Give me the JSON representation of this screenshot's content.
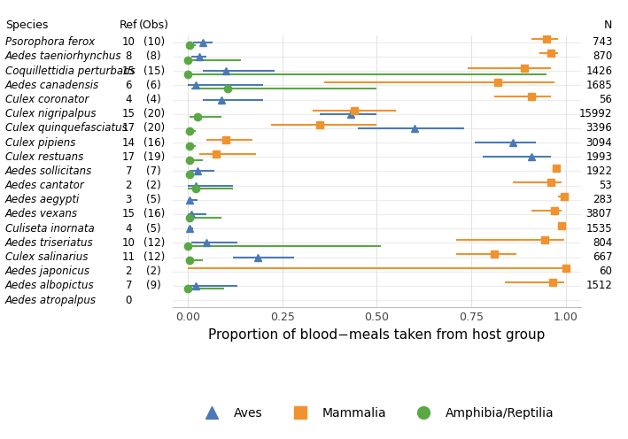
{
  "chart_data": {
    "type": "dot",
    "xlabel": "Proportion of blood−meals taken from host group",
    "columns": {
      "species": "Species",
      "ref": "Ref",
      "obs": "(Obs)",
      "n": "N"
    },
    "categories": [
      "Psorophora ferox",
      "Aedes taeniorhynchus",
      "Coquillettidia perturbans",
      "Aedes canadensis",
      "Culex coronator",
      "Culex nigripalpus",
      "Culex quinquefasciatus",
      "Culex pipiens",
      "Culex restuans",
      "Aedes sollicitans",
      "Aedes cantator",
      "Aedes aegypti",
      "Aedes vexans",
      "Culiseta inornata",
      "Aedes triseriatus",
      "Culex salinarius",
      "Aedes japonicus",
      "Aedes albopictus",
      "Aedes atropalpus"
    ],
    "ref": [
      10,
      8,
      15,
      6,
      4,
      15,
      17,
      14,
      17,
      7,
      2,
      3,
      15,
      4,
      10,
      11,
      2,
      7,
      0
    ],
    "obs": [
      "(10)",
      "(8)",
      "(15)",
      "(6)",
      "(4)",
      "(20)",
      "(20)",
      "(16)",
      "(19)",
      "(7)",
      "(2)",
      "(5)",
      "(16)",
      "(5)",
      "(12)",
      "(12)",
      "(2)",
      "(9)",
      null
    ],
    "n": [
      743,
      870,
      1426,
      1685,
      56,
      15992,
      3396,
      3094,
      1993,
      1922,
      53,
      283,
      3807,
      1535,
      804,
      667,
      60,
      1512,
      null
    ],
    "series": [
      {
        "name": "Aves",
        "color": "#4a7ab5",
        "marker": "triangle",
        "values": [
          0.04,
          0.03,
          0.1,
          0.02,
          0.09,
          0.43,
          0.6,
          0.86,
          0.91,
          0.025,
          0.02,
          0.005,
          0.01,
          0.005,
          0.05,
          0.185,
          null,
          0.02,
          null
        ],
        "lower": [
          0.015,
          0.01,
          0.04,
          0.0,
          0.04,
          0.35,
          0.45,
          0.76,
          0.78,
          0.005,
          0.0,
          0.0,
          0.0,
          0.0,
          0.01,
          0.12,
          null,
          0.0,
          null
        ],
        "upper": [
          0.065,
          0.05,
          0.23,
          0.2,
          0.2,
          0.5,
          0.73,
          0.92,
          0.96,
          0.07,
          0.12,
          0.025,
          0.05,
          0.015,
          0.13,
          0.28,
          null,
          0.13,
          null
        ]
      },
      {
        "name": "Mammalia",
        "color": "#f0922e",
        "marker": "square",
        "values": [
          0.95,
          0.96,
          0.89,
          0.82,
          0.91,
          0.44,
          0.35,
          0.1,
          0.075,
          0.975,
          0.96,
          0.995,
          0.97,
          0.99,
          0.945,
          0.81,
          1.0,
          0.965,
          null
        ],
        "lower": [
          0.91,
          0.93,
          0.74,
          0.36,
          0.81,
          0.33,
          0.22,
          0.05,
          0.03,
          0.97,
          0.86,
          0.98,
          0.91,
          0.985,
          0.71,
          0.71,
          0.0,
          0.84,
          null
        ],
        "upper": [
          0.98,
          0.98,
          0.96,
          0.97,
          0.96,
          0.55,
          0.5,
          0.17,
          0.18,
          0.985,
          0.99,
          1.0,
          0.99,
          0.995,
          0.995,
          0.87,
          1.0,
          0.995,
          null
        ]
      },
      {
        "name": "Amphibia/Reptilia",
        "color": "#5aa844",
        "marker": "circle",
        "values": [
          0.005,
          0.0,
          0.0,
          0.105,
          null,
          0.025,
          0.005,
          0.005,
          0.005,
          0.005,
          0.02,
          null,
          0.005,
          null,
          0.0,
          0.005,
          null,
          0.0,
          null
        ],
        "lower": [
          0.0,
          0.0,
          0.0,
          0.01,
          null,
          0.005,
          0.0,
          0.0,
          0.0,
          0.0,
          0.0,
          null,
          0.0,
          null,
          0.0,
          0.0,
          null,
          0.0,
          null
        ],
        "upper": [
          0.02,
          0.14,
          0.95,
          0.5,
          null,
          0.09,
          0.02,
          0.02,
          0.04,
          0.015,
          0.12,
          null,
          0.09,
          null,
          0.51,
          0.04,
          null,
          0.095,
          null
        ]
      }
    ],
    "xlim": [
      -0.04,
      1.04
    ],
    "xticks": [
      {
        "value": 0,
        "label": "0.00"
      },
      {
        "value": 0.25,
        "label": "0.25"
      },
      {
        "value": 0.5,
        "label": "0.50"
      },
      {
        "value": 0.75,
        "label": "0.75"
      },
      {
        "value": 1,
        "label": "1.00"
      }
    ],
    "grid": true,
    "legend": "lower center"
  }
}
